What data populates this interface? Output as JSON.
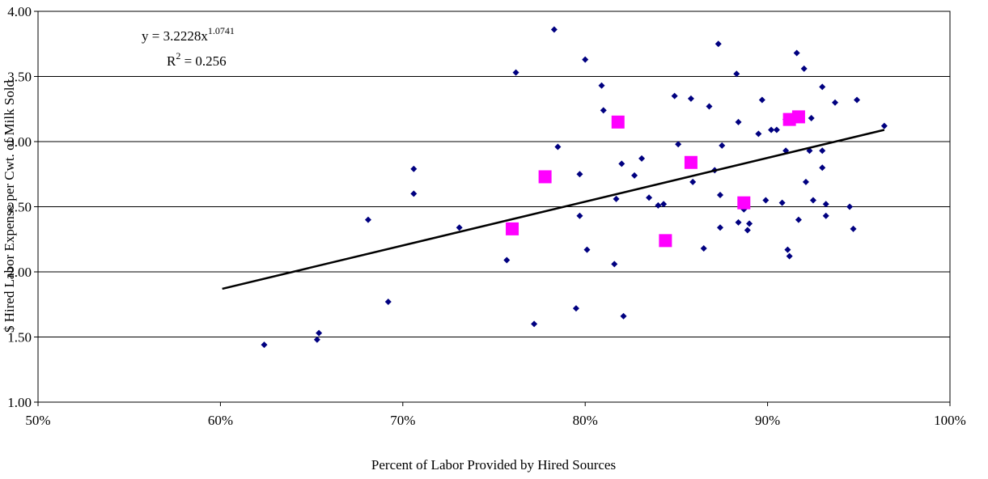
{
  "chart_data": {
    "type": "scatter",
    "xlabel": "Percent of Labor Provided by Hired Sources",
    "ylabel": "$ Hired Labor Expense per Cwt. of Milk Sold",
    "xlim": [
      50,
      100
    ],
    "xticks": [
      {
        "value": 50,
        "label": "50%"
      },
      {
        "value": 60,
        "label": "60%"
      },
      {
        "value": 70,
        "label": "70%"
      },
      {
        "value": 80,
        "label": "80%"
      },
      {
        "value": 90,
        "label": "90%"
      },
      {
        "value": 100,
        "label": "100%"
      }
    ],
    "ylim": [
      1,
      4
    ],
    "yticks": [
      {
        "value": 1,
        "label": "1.00"
      },
      {
        "value": 1.5,
        "label": "1.50"
      },
      {
        "value": 2,
        "label": "2.00"
      },
      {
        "value": 2.5,
        "label": "2.50"
      },
      {
        "value": 3,
        "label": "3.00"
      },
      {
        "value": 3.5,
        "label": "3.50"
      },
      {
        "value": 4,
        "label": "4.00"
      }
    ],
    "grid": true,
    "series": [
      {
        "color": "#000080",
        "marker": "diamond",
        "x": [
          62.4,
          65.3,
          65.4,
          68.1,
          69.2,
          70.6,
          70.6,
          73.1,
          75.7,
          76.2,
          77.2,
          78.3,
          78.5,
          79.5,
          79.7,
          79.7,
          80.0,
          80.1,
          80.9,
          81.0,
          81.6,
          81.7,
          82.0,
          82.1,
          82.7,
          83.1,
          83.5,
          84.0,
          84.3,
          84.9,
          85.1,
          85.8,
          85.9,
          86.5,
          86.8,
          87.1,
          87.3,
          87.4,
          87.4,
          87.5,
          88.3,
          88.4,
          88.4,
          88.7,
          88.9,
          89.0,
          89.5,
          89.7,
          89.9,
          90.2,
          90.5,
          90.8,
          91.0,
          91.0,
          91.1,
          91.2,
          91.6,
          91.7,
          92.0,
          92.1,
          92.3,
          92.4,
          92.5,
          93.0,
          93.0,
          93.0,
          93.2,
          93.2,
          93.7,
          94.5,
          94.7,
          94.9,
          96.4
        ],
        "values": [
          1.44,
          1.48,
          1.53,
          2.4,
          1.77,
          2.79,
          2.6,
          2.34,
          2.09,
          3.53,
          1.6,
          3.86,
          2.96,
          1.72,
          2.75,
          2.43,
          3.63,
          2.17,
          3.43,
          3.24,
          2.06,
          2.56,
          2.83,
          1.66,
          2.74,
          2.87,
          2.57,
          2.51,
          2.52,
          3.35,
          2.98,
          3.33,
          2.69,
          2.18,
          3.27,
          2.78,
          3.75,
          2.59,
          2.34,
          2.97,
          3.52,
          3.15,
          2.38,
          2.48,
          2.32,
          2.37,
          3.06,
          3.32,
          2.55,
          3.09,
          3.09,
          2.53,
          3.17,
          2.93,
          2.17,
          2.12,
          3.68,
          2.4,
          3.56,
          2.69,
          2.93,
          3.18,
          2.55,
          3.42,
          2.8,
          2.93,
          2.52,
          2.43,
          3.3,
          2.5,
          2.33,
          3.32,
          3.12
        ]
      },
      {
        "color": "#FF00FF",
        "marker": "square",
        "x": [
          76.0,
          77.8,
          81.8,
          84.4,
          85.8,
          88.7,
          91.2,
          91.7
        ],
        "values": [
          2.33,
          2.73,
          3.15,
          2.24,
          2.84,
          2.53,
          3.17,
          3.19
        ]
      }
    ],
    "trendline": {
      "color": "#000000",
      "x": [
        60.1,
        96.4
      ],
      "values": [
        1.87,
        3.09
      ]
    },
    "equation": {
      "base": "y = 3.2228x",
      "exponent": "1.0741"
    },
    "r_squared": {
      "base": "R",
      "exponent": "2",
      "rest": " = 0.256"
    }
  }
}
